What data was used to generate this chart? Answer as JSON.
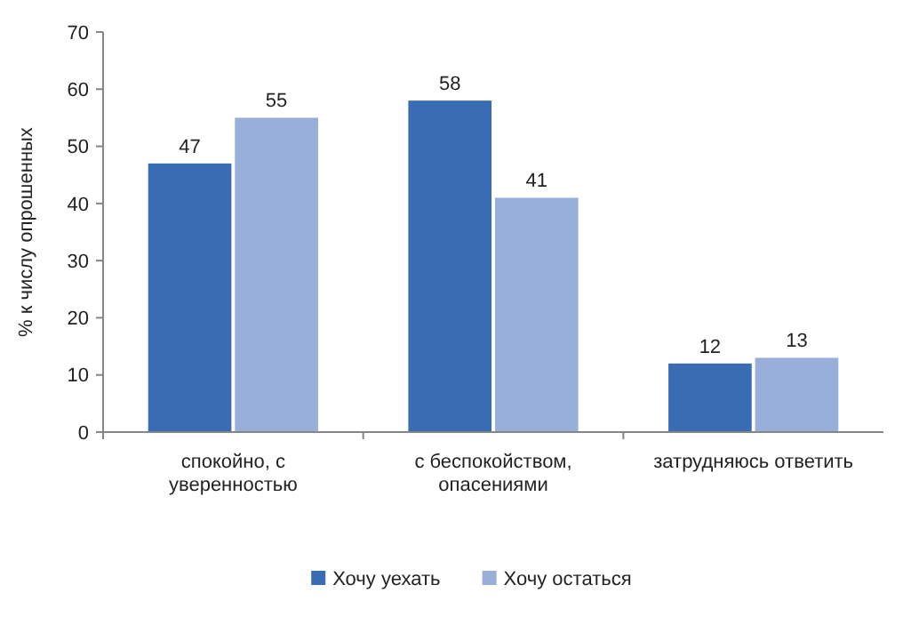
{
  "chart_data": {
    "type": "bar",
    "ylabel": "% к числу опрошенных",
    "categories": [
      "спокойно, с уверенностью",
      "с беспокойством, опасениями",
      "затрудняюсь ответить"
    ],
    "series": [
      {
        "name": "Хочу уехать",
        "color": "#3a6cb4",
        "values": [
          47,
          58,
          12
        ]
      },
      {
        "name": "Хочу остаться",
        "color": "#98afd9",
        "values": [
          55,
          41,
          13
        ]
      }
    ],
    "ylim": [
      0,
      70
    ],
    "yticks": [
      0,
      10,
      20,
      30,
      40,
      50,
      60,
      70
    ],
    "grid": false,
    "legend": "bottom",
    "data_labels": true
  }
}
